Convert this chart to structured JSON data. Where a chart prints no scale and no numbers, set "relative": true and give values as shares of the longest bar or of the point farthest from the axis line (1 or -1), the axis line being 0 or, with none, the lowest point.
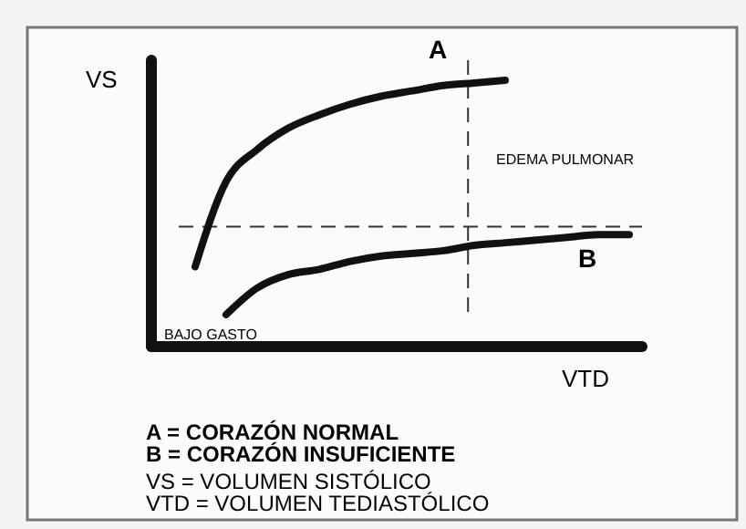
{
  "chart_data": {
    "type": "line",
    "relative": true,
    "xlabel": "VTD",
    "ylabel": "VS",
    "categories": [
      null,
      null,
      null,
      null,
      null,
      null,
      null,
      null,
      null,
      null,
      null,
      null,
      null,
      null,
      null
    ],
    "series": [
      {
        "name": "A",
        "color": "#111111",
        "values": [
          0.3,
          0.62,
          0.74,
          0.82,
          0.87,
          0.91,
          0.94,
          0.96,
          0.98,
          0.99,
          1.0,
          null,
          null,
          null,
          null
        ]
      },
      {
        "name": "B",
        "color": "#111111",
        "values": [
          null,
          0.12,
          0.22,
          0.27,
          0.29,
          0.32,
          0.34,
          0.35,
          0.36,
          0.38,
          0.39,
          0.4,
          0.41,
          0.42,
          0.42
        ]
      }
    ],
    "ref_lines": [
      {
        "axis": "y",
        "value": 0.45,
        "line_style": "dashed"
      }
    ],
    "annotations": [
      "EDEMA PULMONAR",
      "BAJO GASTO",
      "A = CORAZÓN NORMAL",
      "B = CORAZÓN INSUFICIENTE",
      "VS = VOLUMEN SISTÓLICO",
      "VTD = VOLUMEN TEDIASTÓLICO"
    ],
    "line_style": "solid"
  }
}
